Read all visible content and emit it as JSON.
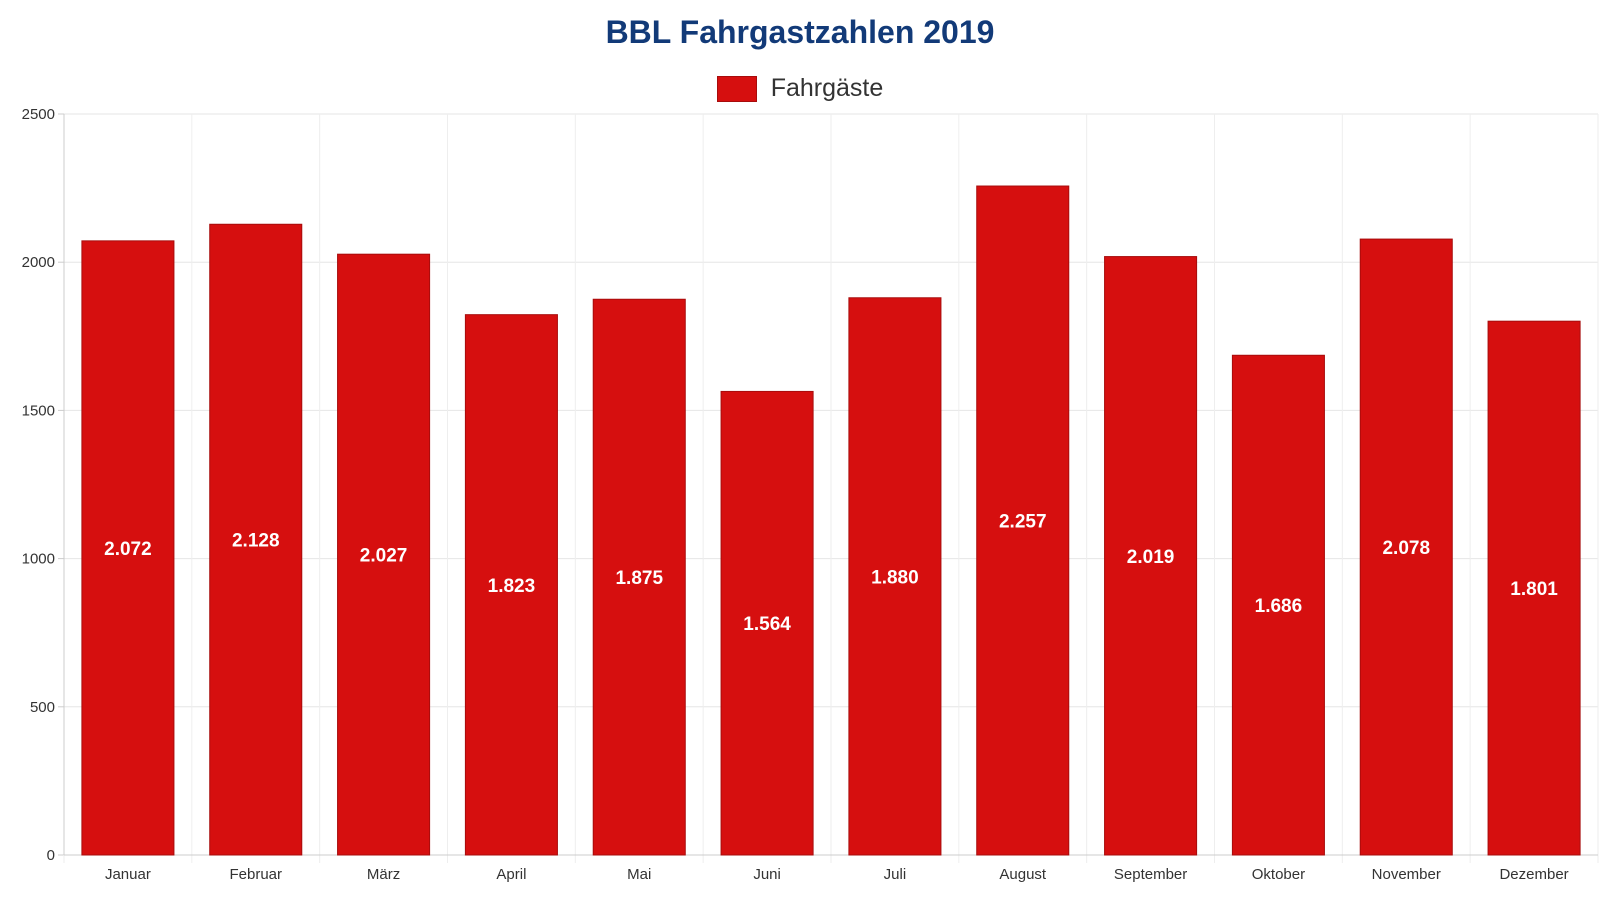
{
  "chart_data": {
    "type": "bar",
    "title": "BBL Fahrgastzahlen 2019",
    "xlabel": "",
    "ylabel": "",
    "categories": [
      "Januar",
      "Februar",
      "März",
      "April",
      "Mai",
      "Juni",
      "Juli",
      "August",
      "September",
      "Oktober",
      "November",
      "Dezember"
    ],
    "series": [
      {
        "name": "Fahrgäste",
        "values": [
          2072,
          2128,
          2027,
          1823,
          1875,
          1564,
          1880,
          2257,
          2019,
          1686,
          2078,
          1801
        ],
        "value_labels": [
          "2.072",
          "2.128",
          "2.027",
          "1.823",
          "1.875",
          "1.564",
          "1.880",
          "2.257",
          "2.019",
          "1.686",
          "2.078",
          "1.801"
        ]
      }
    ],
    "ylim": [
      0,
      2500
    ],
    "yticks": [
      "0",
      "500",
      "1000",
      "1500",
      "2000",
      "2500"
    ],
    "grid": true,
    "legend_position": "top",
    "colors": {
      "bar": "#d60f0f",
      "bar_border": "#a80c0c",
      "title": "#123a78"
    }
  }
}
